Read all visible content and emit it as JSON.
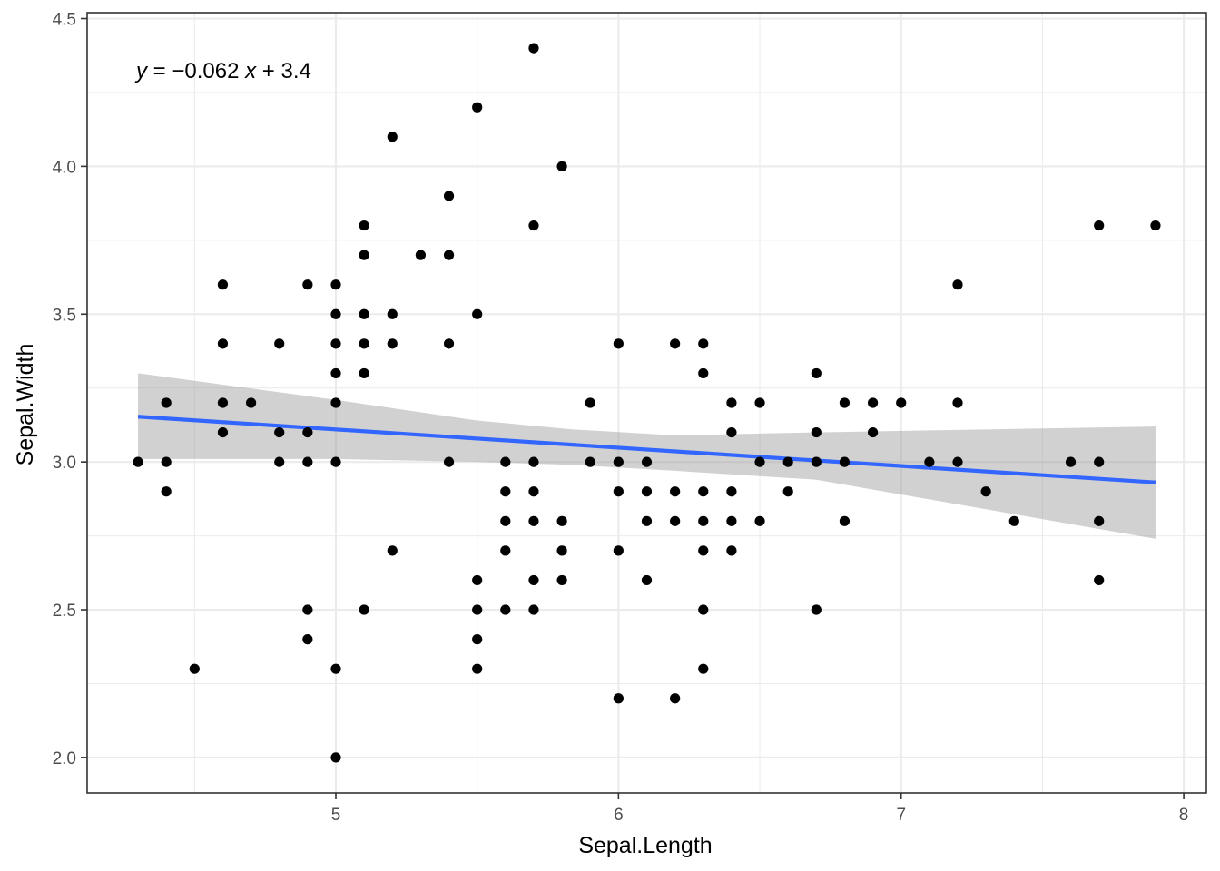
{
  "chart_data": {
    "type": "scatter",
    "title": "",
    "xlabel": "Sepal.Length",
    "ylabel": "Sepal.Width",
    "xlim": [
      4.12,
      8.08
    ],
    "ylim": [
      1.88,
      4.52
    ],
    "x_ticks": [
      5,
      6,
      7,
      8
    ],
    "x_tick_labels": [
      "5",
      "6",
      "7",
      "8"
    ],
    "y_ticks": [
      2.0,
      2.5,
      3.0,
      3.5,
      4.0,
      4.5
    ],
    "y_tick_labels": [
      "2.0",
      "2.5",
      "3.0",
      "3.5",
      "4.0",
      "4.5"
    ],
    "grid": true,
    "annotation": {
      "y_var": "y",
      "eq_sign": " = ",
      "minus": "−",
      "coef": "0.062",
      "x_var": "x",
      "plus": " + ",
      "intercept": "3.4",
      "slope_value": -0.0618,
      "intercept_value": 3.419
    },
    "regression": {
      "color": "#3366ff",
      "x_range": [
        4.3,
        7.9
      ],
      "ribbon_color": "#999999",
      "ribbon": [
        {
          "x": 4.3,
          "lower": 3.01,
          "upper": 3.3
        },
        {
          "x": 5.0,
          "lower": 3.01,
          "upper": 3.21
        },
        {
          "x": 5.5,
          "lower": 3.0,
          "upper": 3.14
        },
        {
          "x": 5.84,
          "lower": 2.99,
          "upper": 3.11
        },
        {
          "x": 6.2,
          "lower": 2.97,
          "upper": 3.09
        },
        {
          "x": 6.7,
          "lower": 2.94,
          "upper": 3.1
        },
        {
          "x": 7.3,
          "lower": 2.84,
          "upper": 3.11
        },
        {
          "x": 7.9,
          "lower": 2.74,
          "upper": 3.12
        }
      ]
    },
    "point_color": "#000000",
    "points": [
      [
        4.3,
        3.0
      ],
      [
        4.4,
        3.2
      ],
      [
        4.4,
        3.0
      ],
      [
        4.4,
        2.9
      ],
      [
        4.5,
        2.3
      ],
      [
        4.6,
        3.6
      ],
      [
        4.6,
        3.4
      ],
      [
        4.6,
        3.2
      ],
      [
        4.6,
        3.1
      ],
      [
        4.7,
        3.2
      ],
      [
        4.8,
        3.4
      ],
      [
        4.8,
        3.1
      ],
      [
        4.8,
        3.0
      ],
      [
        4.9,
        3.6
      ],
      [
        4.9,
        3.1
      ],
      [
        4.9,
        3.0
      ],
      [
        4.9,
        2.5
      ],
      [
        4.9,
        2.4
      ],
      [
        5.0,
        3.6
      ],
      [
        5.0,
        3.5
      ],
      [
        5.0,
        3.4
      ],
      [
        5.0,
        3.3
      ],
      [
        5.0,
        3.2
      ],
      [
        5.0,
        3.0
      ],
      [
        5.0,
        2.3
      ],
      [
        5.0,
        2.0
      ],
      [
        5.1,
        3.8
      ],
      [
        5.1,
        3.7
      ],
      [
        5.1,
        3.5
      ],
      [
        5.1,
        3.4
      ],
      [
        5.1,
        3.3
      ],
      [
        5.1,
        2.5
      ],
      [
        5.2,
        4.1
      ],
      [
        5.2,
        3.5
      ],
      [
        5.2,
        3.4
      ],
      [
        5.2,
        2.7
      ],
      [
        5.3,
        3.7
      ],
      [
        5.4,
        3.9
      ],
      [
        5.4,
        3.7
      ],
      [
        5.4,
        3.4
      ],
      [
        5.4,
        3.0
      ],
      [
        5.5,
        4.2
      ],
      [
        5.5,
        3.5
      ],
      [
        5.5,
        2.6
      ],
      [
        5.5,
        2.5
      ],
      [
        5.5,
        2.4
      ],
      [
        5.5,
        2.3
      ],
      [
        5.6,
        3.0
      ],
      [
        5.6,
        2.9
      ],
      [
        5.6,
        2.8
      ],
      [
        5.6,
        2.7
      ],
      [
        5.6,
        2.5
      ],
      [
        5.7,
        4.4
      ],
      [
        5.7,
        3.8
      ],
      [
        5.7,
        3.0
      ],
      [
        5.7,
        2.9
      ],
      [
        5.7,
        2.8
      ],
      [
        5.7,
        2.6
      ],
      [
        5.7,
        2.5
      ],
      [
        5.8,
        4.0
      ],
      [
        5.8,
        2.8
      ],
      [
        5.8,
        2.7
      ],
      [
        5.8,
        2.6
      ],
      [
        5.9,
        3.2
      ],
      [
        5.9,
        3.0
      ],
      [
        6.0,
        3.4
      ],
      [
        6.0,
        3.0
      ],
      [
        6.0,
        2.9
      ],
      [
        6.0,
        2.7
      ],
      [
        6.0,
        2.2
      ],
      [
        6.1,
        3.0
      ],
      [
        6.1,
        2.9
      ],
      [
        6.1,
        2.8
      ],
      [
        6.1,
        2.6
      ],
      [
        6.2,
        3.4
      ],
      [
        6.2,
        2.9
      ],
      [
        6.2,
        2.8
      ],
      [
        6.2,
        2.2
      ],
      [
        6.3,
        3.4
      ],
      [
        6.3,
        3.3
      ],
      [
        6.3,
        2.9
      ],
      [
        6.3,
        2.8
      ],
      [
        6.3,
        2.7
      ],
      [
        6.3,
        2.5
      ],
      [
        6.3,
        2.3
      ],
      [
        6.4,
        3.2
      ],
      [
        6.4,
        3.1
      ],
      [
        6.4,
        2.9
      ],
      [
        6.4,
        2.8
      ],
      [
        6.4,
        2.7
      ],
      [
        6.5,
        3.2
      ],
      [
        6.5,
        3.0
      ],
      [
        6.5,
        2.8
      ],
      [
        6.6,
        3.0
      ],
      [
        6.6,
        2.9
      ],
      [
        6.7,
        3.3
      ],
      [
        6.7,
        3.1
      ],
      [
        6.7,
        3.0
      ],
      [
        6.7,
        2.5
      ],
      [
        6.8,
        3.2
      ],
      [
        6.8,
        3.0
      ],
      [
        6.8,
        2.8
      ],
      [
        6.9,
        3.2
      ],
      [
        6.9,
        3.1
      ],
      [
        7.0,
        3.2
      ],
      [
        7.1,
        3.0
      ],
      [
        7.2,
        3.6
      ],
      [
        7.2,
        3.2
      ],
      [
        7.2,
        3.0
      ],
      [
        7.3,
        2.9
      ],
      [
        7.4,
        2.8
      ],
      [
        7.6,
        3.0
      ],
      [
        7.7,
        3.8
      ],
      [
        7.7,
        3.0
      ],
      [
        7.7,
        2.8
      ],
      [
        7.7,
        2.6
      ],
      [
        7.9,
        3.8
      ]
    ]
  }
}
